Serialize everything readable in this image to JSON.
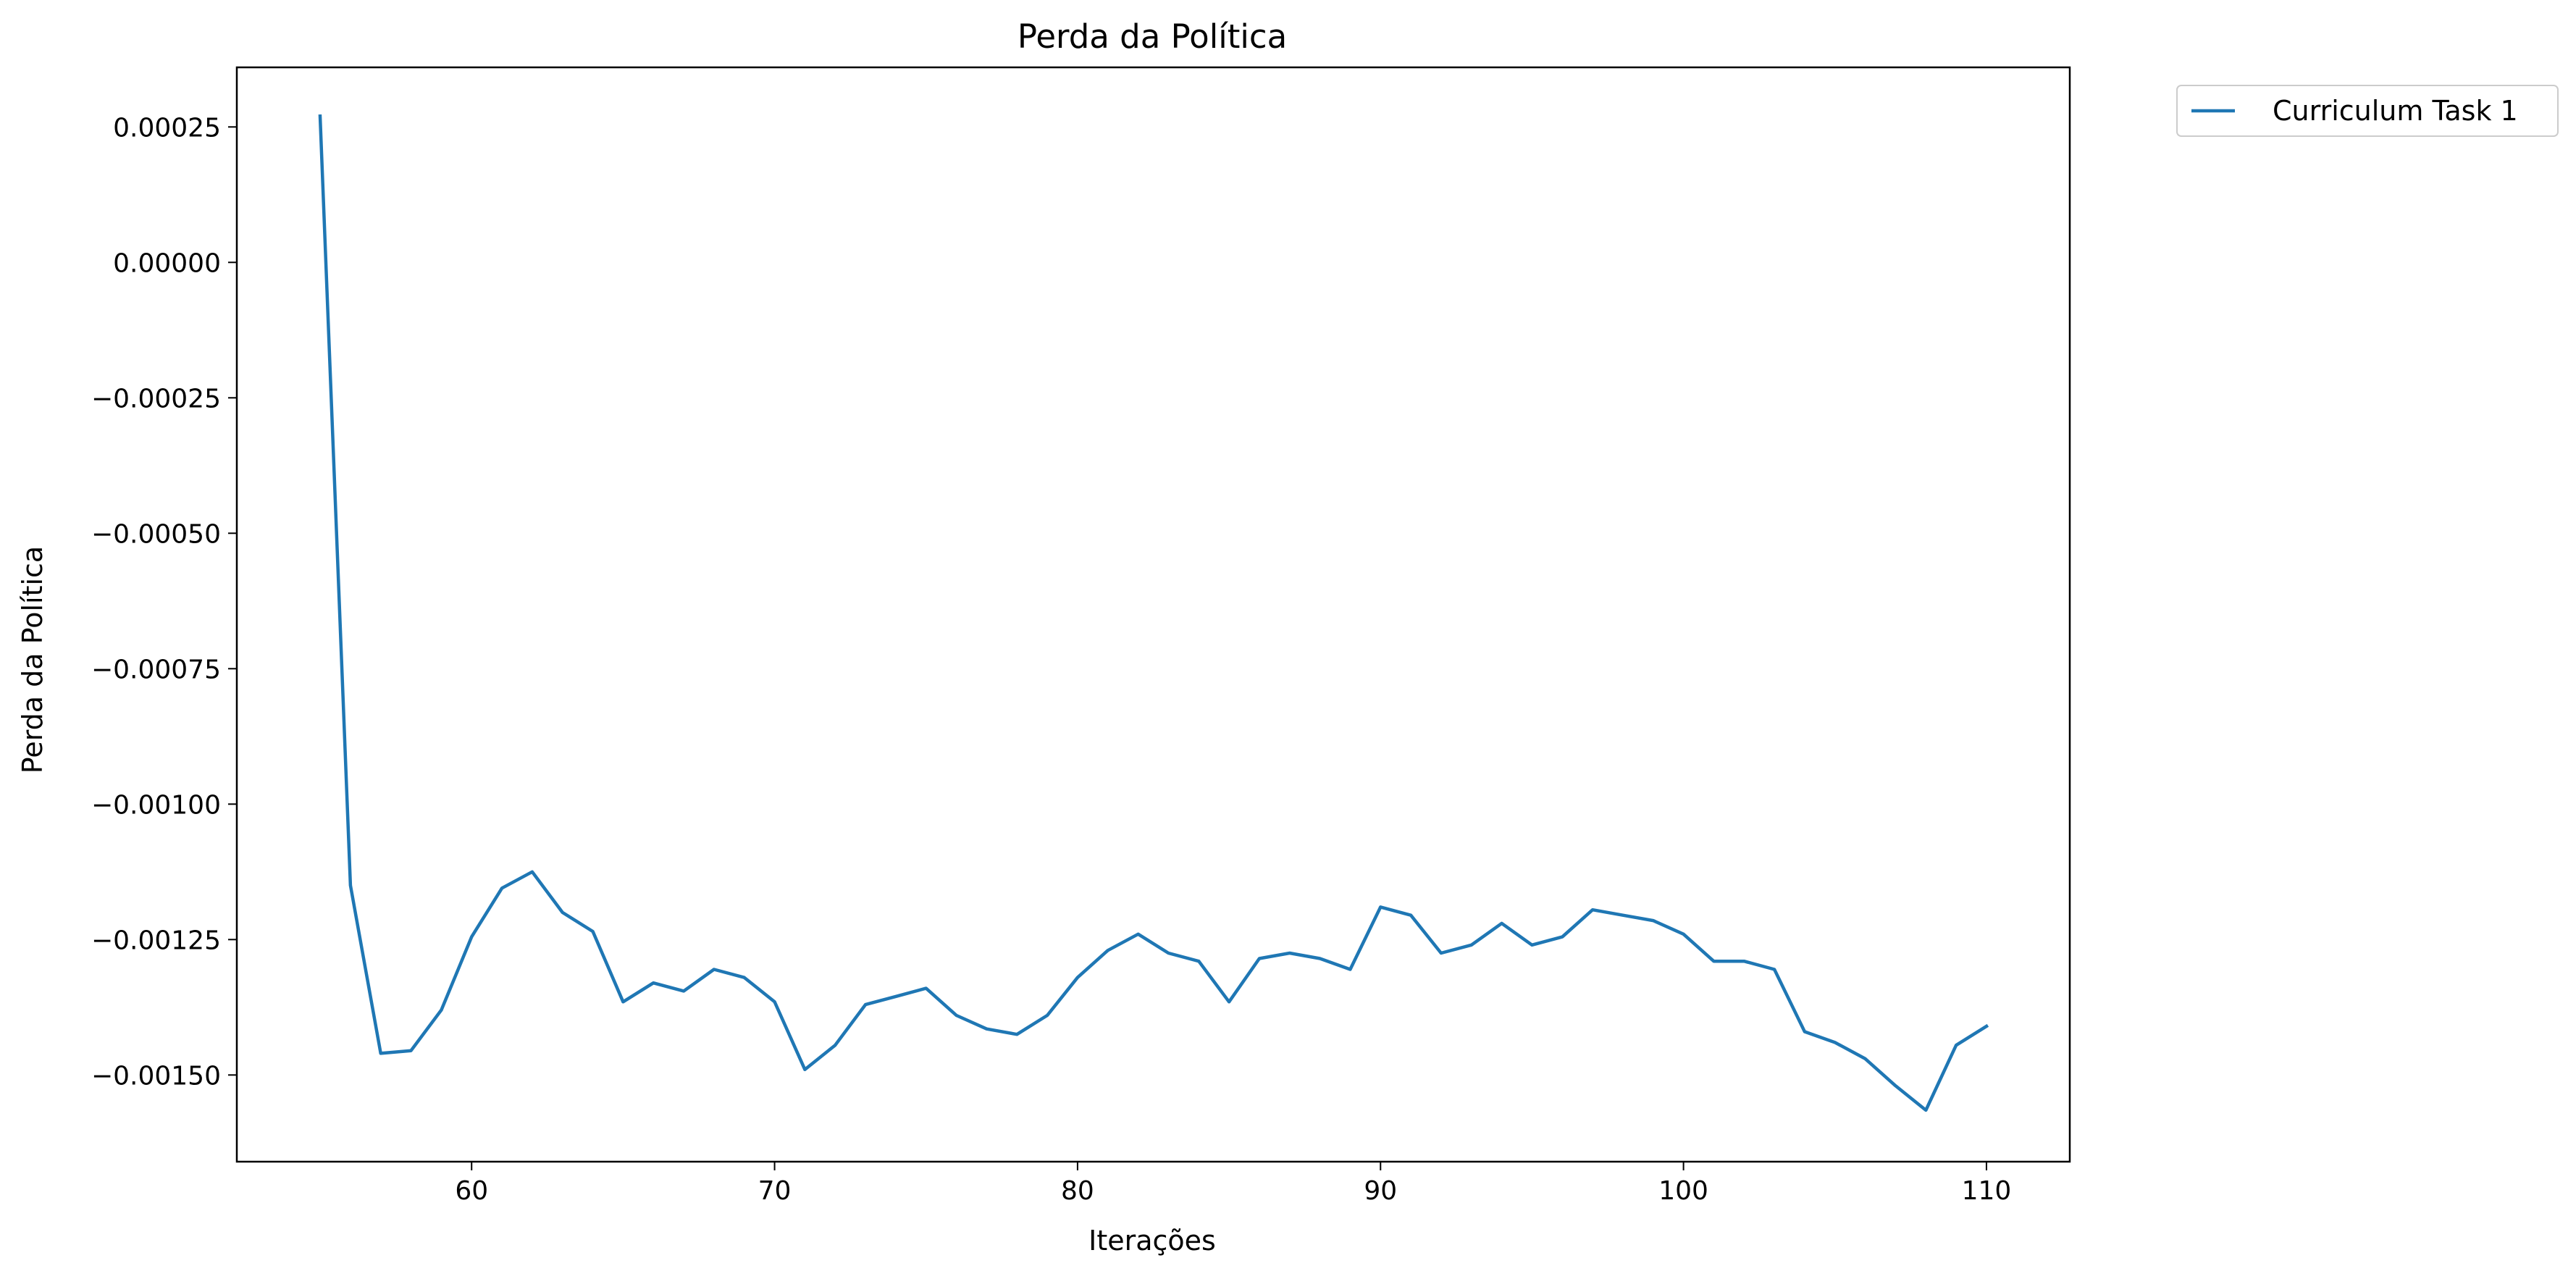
{
  "chart_data": {
    "type": "line",
    "title": "Perda da Política",
    "xlabel": "Iterações",
    "ylabel": "Perda da Política",
    "xlim": [
      52.25,
      112.75
    ],
    "ylim": [
      -0.00166,
      0.00036
    ],
    "xticks": [
      60,
      70,
      80,
      90,
      100,
      110
    ],
    "yticks": [
      0.00025,
      0.0,
      -0.00025,
      -0.0005,
      -0.00075,
      -0.001,
      -0.00125,
      -0.0015
    ],
    "ytick_labels": [
      "0.00025",
      "0.00000",
      "−0.00025",
      "−0.00050",
      "−0.00075",
      "−0.00100",
      "−0.00125",
      "−0.00150"
    ],
    "grid": false,
    "legend_position": "outside-top-right",
    "colors": {
      "series": "#1f77b4",
      "axes": "#000000",
      "background": "#ffffff"
    },
    "series": [
      {
        "name": "Curriculum Task 1",
        "x": [
          55,
          56,
          57,
          58,
          59,
          60,
          61,
          62,
          63,
          64,
          65,
          66,
          67,
          68,
          69,
          70,
          71,
          72,
          73,
          74,
          75,
          76,
          77,
          78,
          79,
          80,
          81,
          82,
          83,
          84,
          85,
          86,
          87,
          88,
          89,
          90,
          91,
          92,
          93,
          94,
          95,
          96,
          97,
          98,
          99,
          100,
          101,
          102,
          103,
          104,
          105,
          106,
          107,
          108,
          109,
          110
        ],
        "values": [
          0.00027,
          -0.00115,
          -0.00146,
          -0.001455,
          -0.00138,
          -0.001245,
          -0.001155,
          -0.001125,
          -0.0012,
          -0.001235,
          -0.001365,
          -0.00133,
          -0.001345,
          -0.001305,
          -0.00132,
          -0.001365,
          -0.00149,
          -0.001445,
          -0.00137,
          -0.001355,
          -0.00134,
          -0.00139,
          -0.001415,
          -0.001425,
          -0.00139,
          -0.00132,
          -0.00127,
          -0.00124,
          -0.001275,
          -0.00129,
          -0.001365,
          -0.001285,
          -0.001275,
          -0.001285,
          -0.001305,
          -0.00119,
          -0.001205,
          -0.001275,
          -0.00126,
          -0.00122,
          -0.00126,
          -0.001245,
          -0.001195,
          -0.001205,
          -0.001215,
          -0.00124,
          -0.00129,
          -0.00129,
          -0.001305,
          -0.00142,
          -0.00144,
          -0.00147,
          -0.00152,
          -0.001565,
          -0.001445,
          -0.00141
        ]
      }
    ]
  }
}
